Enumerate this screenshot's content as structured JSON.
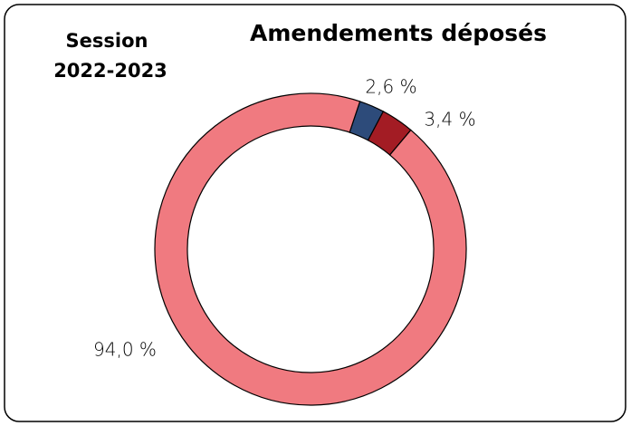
{
  "chart_data": {
    "type": "donut",
    "title": "Amendements déposés",
    "subtitle_lines": [
      "Session",
      "2022-2023"
    ],
    "values": [
      2.6,
      3.4,
      94.0
    ],
    "value_labels": [
      "2,6 %",
      "3,4 %",
      "94,0 %"
    ],
    "colors": [
      "#2d4b7a",
      "#a31c24",
      "#f07a80"
    ]
  }
}
